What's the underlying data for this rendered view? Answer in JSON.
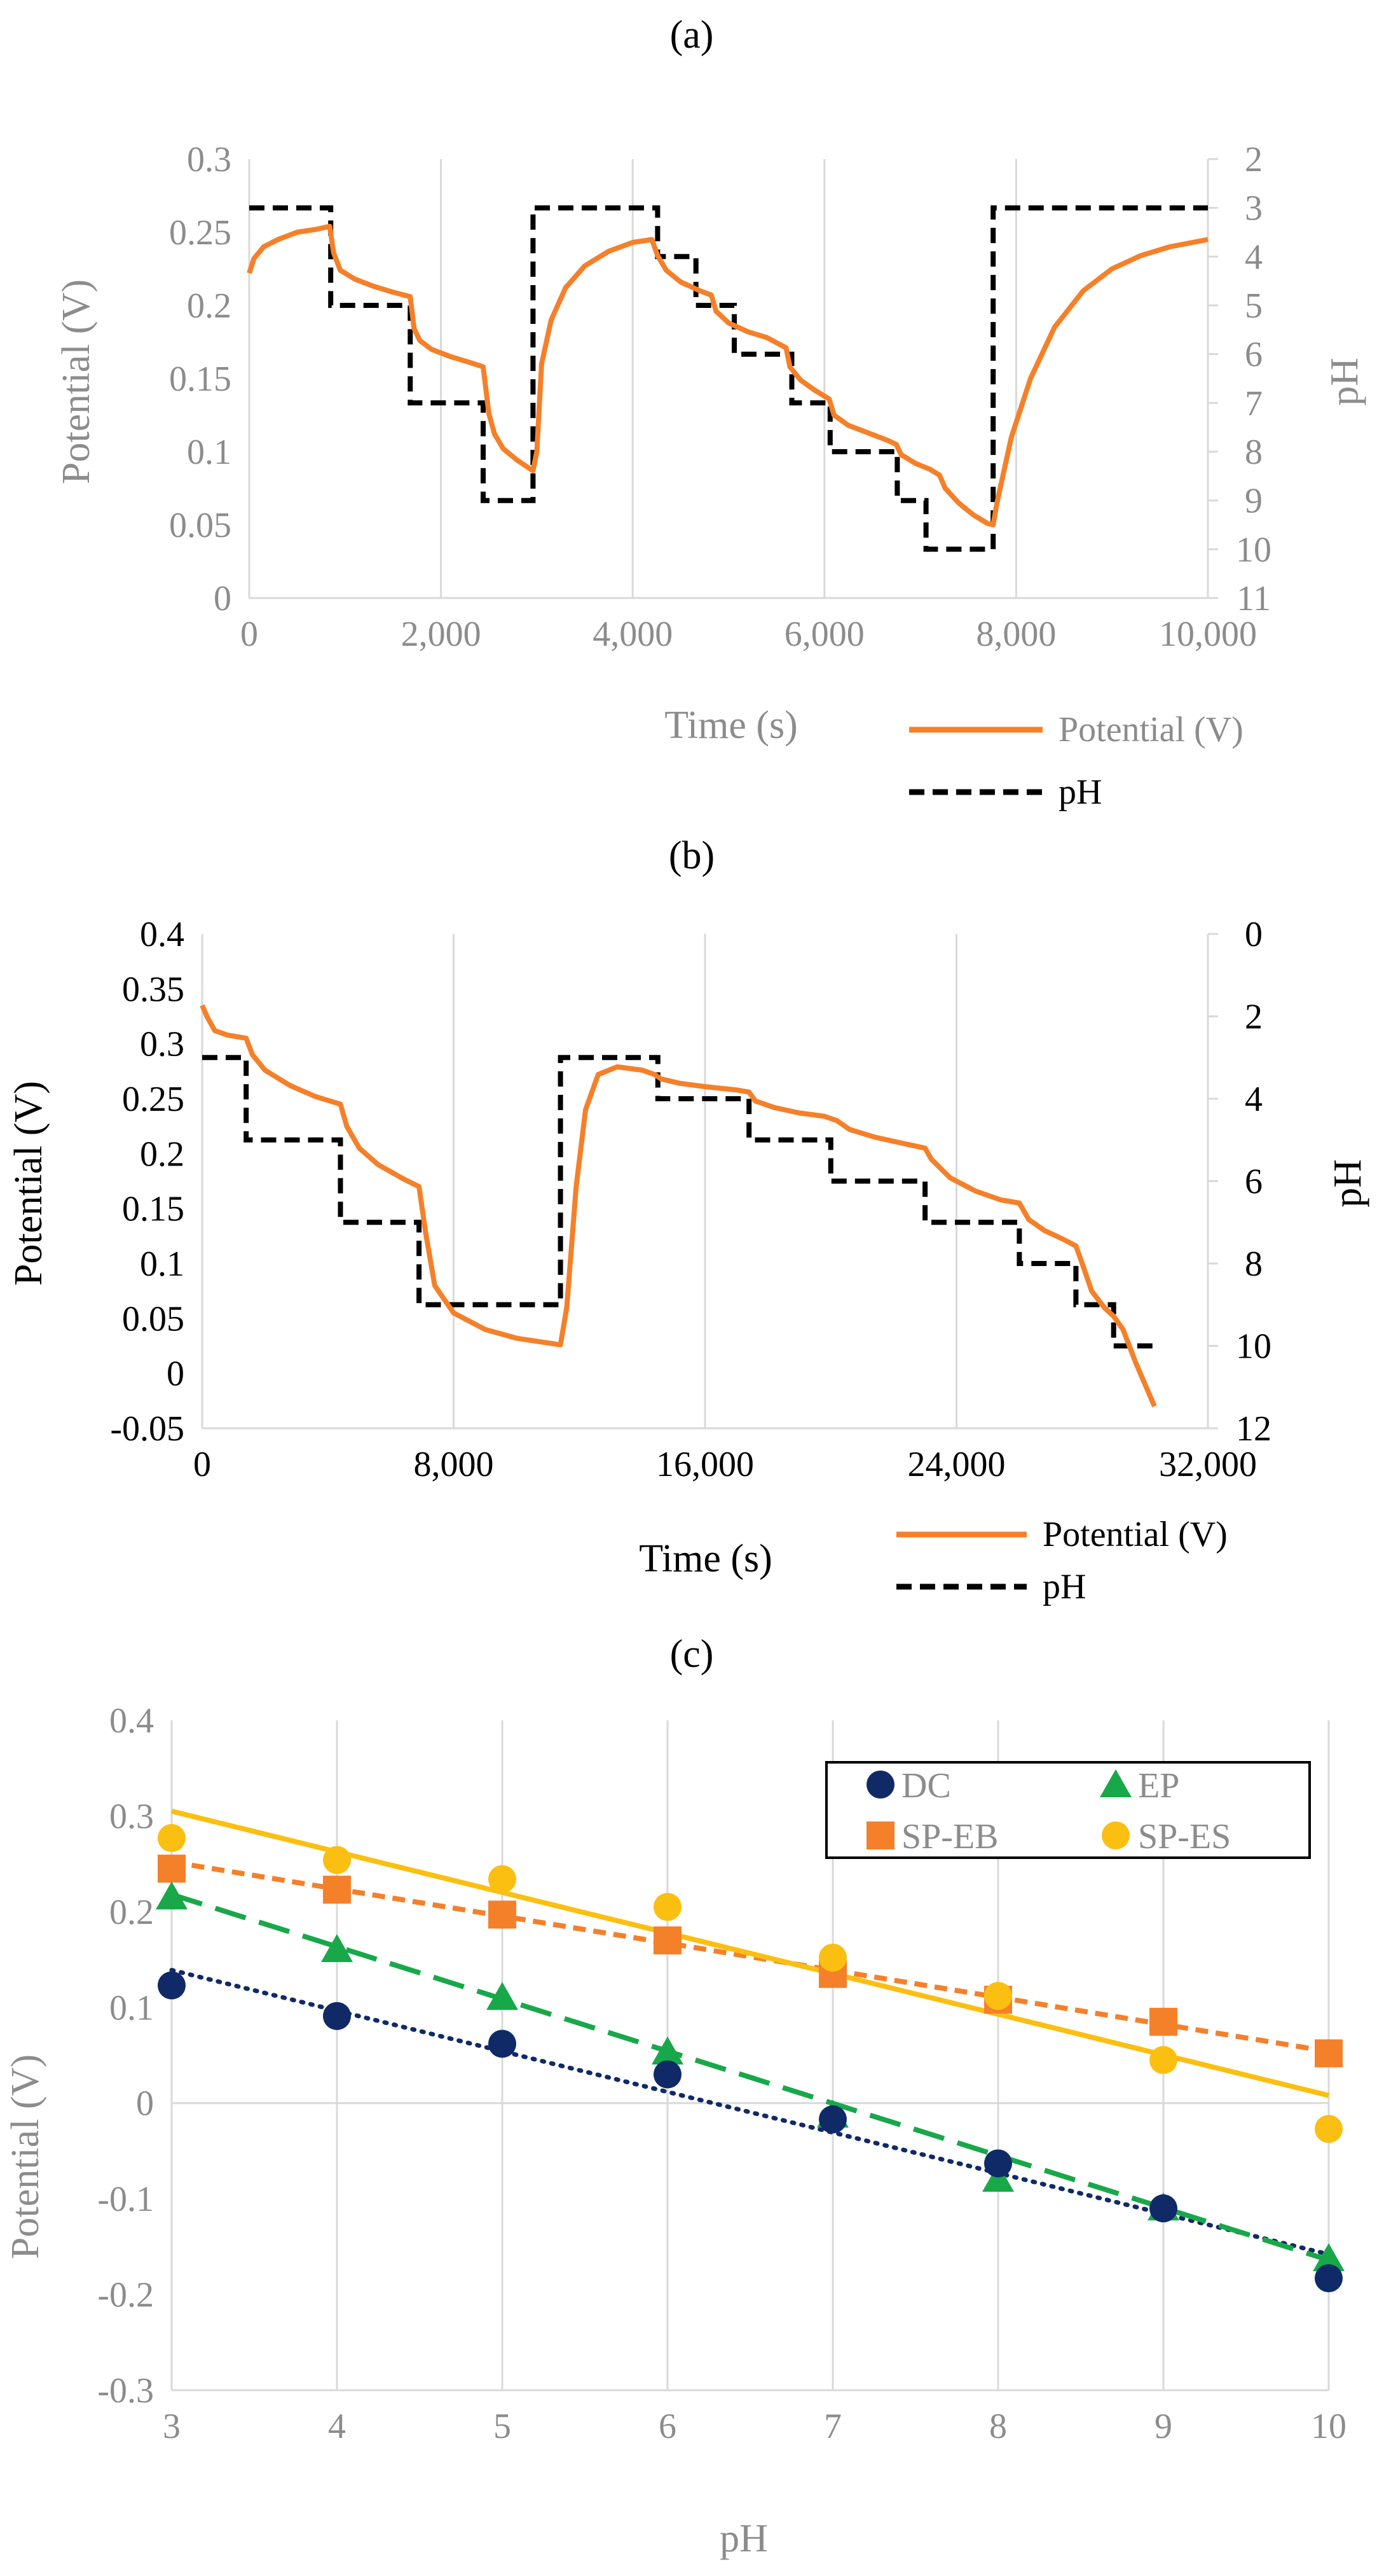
{
  "figure": {
    "colors": {
      "potential": "#F5802A",
      "ph": "#000000",
      "dc": "#0F2A66",
      "ep": "#18A84A",
      "sp_eb": "#F5802A",
      "sp_es": "#FBBF12",
      "grid": "#d9d9d9",
      "axis_text_gray": "#8c8c8c"
    }
  },
  "chart_data": [
    {
      "panel_label": "(a)",
      "type": "line",
      "xlabel": "Time (s)",
      "ylabel": "Potential (V)",
      "y2label": "pH",
      "xlim": [
        0,
        10000
      ],
      "ylim": [
        0,
        0.3
      ],
      "y2lim": [
        2,
        11
      ],
      "y2_inverted": true,
      "x_ticks": [
        "0",
        "2,000",
        "4,000",
        "6,000",
        "8,000",
        "10,000"
      ],
      "y_ticks": [
        "0",
        "0.05",
        "0.1",
        "0.15",
        "0.2",
        "0.25",
        "0.3"
      ],
      "y2_ticks": [
        "2",
        "3",
        "4",
        "5",
        "6",
        "7",
        "8",
        "9",
        "10",
        "11"
      ],
      "legend": [
        "Potential (V)",
        "pH"
      ],
      "series": [
        {
          "name": "Potential (V)",
          "axis": "left",
          "points": [
            [
              0,
              0.222
            ],
            [
              50,
              0.232
            ],
            [
              150,
              0.24
            ],
            [
              300,
              0.245
            ],
            [
              500,
              0.25
            ],
            [
              700,
              0.252
            ],
            [
              840,
              0.254
            ],
            [
              880,
              0.236
            ],
            [
              950,
              0.224
            ],
            [
              1100,
              0.218
            ],
            [
              1300,
              0.213
            ],
            [
              1500,
              0.209
            ],
            [
              1680,
              0.206
            ],
            [
              1720,
              0.184
            ],
            [
              1780,
              0.176
            ],
            [
              1900,
              0.17
            ],
            [
              2100,
              0.165
            ],
            [
              2300,
              0.161
            ],
            [
              2440,
              0.158
            ],
            [
              2500,
              0.126
            ],
            [
              2560,
              0.112
            ],
            [
              2650,
              0.102
            ],
            [
              2800,
              0.094
            ],
            [
              2960,
              0.087
            ],
            [
              3000,
              0.1
            ],
            [
              3050,
              0.16
            ],
            [
              3150,
              0.19
            ],
            [
              3300,
              0.212
            ],
            [
              3500,
              0.227
            ],
            [
              3750,
              0.237
            ],
            [
              4000,
              0.243
            ],
            [
              4200,
              0.245
            ],
            [
              4260,
              0.234
            ],
            [
              4350,
              0.224
            ],
            [
              4500,
              0.216
            ],
            [
              4700,
              0.21
            ],
            [
              4820,
              0.207
            ],
            [
              4870,
              0.196
            ],
            [
              5000,
              0.188
            ],
            [
              5200,
              0.182
            ],
            [
              5400,
              0.178
            ],
            [
              5600,
              0.171
            ],
            [
              5640,
              0.158
            ],
            [
              5750,
              0.149
            ],
            [
              5900,
              0.142
            ],
            [
              6050,
              0.136
            ],
            [
              6100,
              0.125
            ],
            [
              6250,
              0.118
            ],
            [
              6450,
              0.113
            ],
            [
              6650,
              0.108
            ],
            [
              6750,
              0.105
            ],
            [
              6800,
              0.098
            ],
            [
              6950,
              0.092
            ],
            [
              7100,
              0.088
            ],
            [
              7200,
              0.084
            ],
            [
              7260,
              0.075
            ],
            [
              7400,
              0.065
            ],
            [
              7550,
              0.057
            ],
            [
              7700,
              0.051
            ],
            [
              7760,
              0.05
            ],
            [
              7800,
              0.065
            ],
            [
              7950,
              0.11
            ],
            [
              8150,
              0.15
            ],
            [
              8400,
              0.185
            ],
            [
              8700,
              0.21
            ],
            [
              9000,
              0.225
            ],
            [
              9300,
              0.234
            ],
            [
              9600,
              0.24
            ],
            [
              10000,
              0.245
            ]
          ]
        },
        {
          "name": "pH",
          "axis": "right",
          "points": [
            [
              0,
              3
            ],
            [
              850,
              3
            ],
            [
              850,
              5
            ],
            [
              1680,
              5
            ],
            [
              1680,
              7
            ],
            [
              2440,
              7
            ],
            [
              2440,
              9
            ],
            [
              2960,
              9
            ],
            [
              2960,
              3
            ],
            [
              4260,
              3
            ],
            [
              4260,
              4
            ],
            [
              4660,
              4
            ],
            [
              4660,
              5
            ],
            [
              5060,
              5
            ],
            [
              5060,
              6
            ],
            [
              5660,
              6
            ],
            [
              5660,
              7
            ],
            [
              6060,
              7
            ],
            [
              6060,
              8
            ],
            [
              6760,
              8
            ],
            [
              6760,
              9
            ],
            [
              7060,
              9
            ],
            [
              7060,
              10
            ],
            [
              7760,
              10
            ],
            [
              7760,
              3
            ],
            [
              10000,
              3
            ]
          ]
        }
      ]
    },
    {
      "panel_label": "(b)",
      "type": "line",
      "xlabel": "Time (s)",
      "ylabel": "Potential (V)",
      "y2label": "pH",
      "xlim": [
        0,
        32000
      ],
      "ylim": [
        -0.05,
        0.4
      ],
      "y2lim": [
        0,
        12
      ],
      "y2_inverted": true,
      "x_ticks": [
        "0",
        "8,000",
        "16,000",
        "24,000",
        "32,000"
      ],
      "y_ticks": [
        "-0.05",
        "0",
        "0.05",
        "0.1",
        "0.15",
        "0.2",
        "0.25",
        "0.3",
        "0.35",
        "0.4"
      ],
      "y2_ticks": [
        "0",
        "2",
        "4",
        "6",
        "8",
        "10",
        "12"
      ],
      "legend": [
        "Potential (V)",
        "pH"
      ],
      "series": [
        {
          "name": "Potential (V)",
          "axis": "left",
          "points": [
            [
              0,
              0.335
            ],
            [
              150,
              0.325
            ],
            [
              400,
              0.312
            ],
            [
              800,
              0.308
            ],
            [
              1400,
              0.305
            ],
            [
              1600,
              0.29
            ],
            [
              2000,
              0.276
            ],
            [
              2800,
              0.262
            ],
            [
              3600,
              0.252
            ],
            [
              4400,
              0.245
            ],
            [
              4600,
              0.225
            ],
            [
              5000,
              0.205
            ],
            [
              5600,
              0.19
            ],
            [
              6400,
              0.177
            ],
            [
              6900,
              0.17
            ],
            [
              7100,
              0.13
            ],
            [
              7400,
              0.08
            ],
            [
              8000,
              0.055
            ],
            [
              9000,
              0.04
            ],
            [
              10000,
              0.032
            ],
            [
              11400,
              0.026
            ],
            [
              11600,
              0.06
            ],
            [
              11900,
              0.17
            ],
            [
              12200,
              0.24
            ],
            [
              12600,
              0.272
            ],
            [
              13200,
              0.279
            ],
            [
              14000,
              0.276
            ],
            [
              14400,
              0.272
            ],
            [
              14600,
              0.268
            ],
            [
              15200,
              0.264
            ],
            [
              16000,
              0.261
            ],
            [
              17000,
              0.258
            ],
            [
              17400,
              0.256
            ],
            [
              17600,
              0.248
            ],
            [
              18200,
              0.242
            ],
            [
              19000,
              0.237
            ],
            [
              19800,
              0.234
            ],
            [
              20200,
              0.23
            ],
            [
              20600,
              0.222
            ],
            [
              21400,
              0.215
            ],
            [
              22200,
              0.21
            ],
            [
              23000,
              0.205
            ],
            [
              23200,
              0.195
            ],
            [
              23800,
              0.178
            ],
            [
              24600,
              0.166
            ],
            [
              25400,
              0.158
            ],
            [
              26000,
              0.155
            ],
            [
              26300,
              0.14
            ],
            [
              26800,
              0.13
            ],
            [
              27400,
              0.122
            ],
            [
              27800,
              0.116
            ],
            [
              28000,
              0.1
            ],
            [
              28300,
              0.075
            ],
            [
              28700,
              0.06
            ],
            [
              29000,
              0.052
            ],
            [
              29300,
              0.04
            ],
            [
              29700,
              0.01
            ],
            [
              30000,
              -0.01
            ],
            [
              30300,
              -0.03
            ]
          ]
        },
        {
          "name": "pH",
          "axis": "right",
          "points": [
            [
              0,
              3
            ],
            [
              1400,
              3
            ],
            [
              1400,
              5
            ],
            [
              4400,
              5
            ],
            [
              4400,
              7
            ],
            [
              6900,
              7
            ],
            [
              6900,
              9
            ],
            [
              11400,
              9
            ],
            [
              11400,
              3
            ],
            [
              14500,
              3
            ],
            [
              14500,
              4
            ],
            [
              17400,
              4
            ],
            [
              17400,
              5
            ],
            [
              20000,
              5
            ],
            [
              20000,
              6
            ],
            [
              23000,
              6
            ],
            [
              23000,
              7
            ],
            [
              26000,
              7
            ],
            [
              26000,
              8
            ],
            [
              27800,
              8
            ],
            [
              27800,
              9
            ],
            [
              29000,
              9
            ],
            [
              29000,
              10
            ],
            [
              30300,
              10
            ]
          ]
        }
      ]
    },
    {
      "panel_label": "(c)",
      "type": "scatter",
      "xlabel": "pH",
      "ylabel": "Potential (V)",
      "xlim": [
        3,
        10
      ],
      "ylim": [
        -0.3,
        0.4
      ],
      "x_ticks": [
        "3",
        "4",
        "5",
        "6",
        "7",
        "8",
        "9",
        "10"
      ],
      "y_ticks": [
        "-0.3",
        "-0.2",
        "-0.1",
        "0",
        "0.1",
        "0.2",
        "0.3",
        "0.4"
      ],
      "legend": [
        "DC",
        "EP",
        "SP-EB",
        "SP-ES"
      ],
      "x": [
        3,
        4,
        5,
        6,
        7,
        8,
        9,
        10
      ],
      "series": [
        {
          "name": "DC",
          "marker": "circle",
          "values": [
            0.123,
            0.091,
            0.062,
            0.03,
            -0.017,
            -0.063,
            -0.11,
            -0.183
          ],
          "trend": [
            0.139,
            -0.158
          ],
          "trend_style": "dotted"
        },
        {
          "name": "EP",
          "marker": "triangle",
          "values": [
            0.215,
            0.16,
            0.11,
            0.053,
            -0.013,
            -0.08,
            -0.11,
            -0.163
          ],
          "trend": [
            0.218,
            -0.164
          ],
          "trend_style": "long-dash"
        },
        {
          "name": "SP-EB",
          "marker": "square",
          "values": [
            0.245,
            0.223,
            0.197,
            0.17,
            0.135,
            0.108,
            0.085,
            0.052
          ],
          "trend": [
            0.252,
            0.054
          ],
          "trend_style": "short-dash"
        },
        {
          "name": "SP-ES",
          "marker": "circle",
          "values": [
            0.277,
            0.254,
            0.234,
            0.205,
            0.152,
            0.112,
            0.045,
            -0.027
          ],
          "trend": [
            0.305,
            0.008
          ],
          "trend_style": "solid"
        }
      ]
    }
  ]
}
